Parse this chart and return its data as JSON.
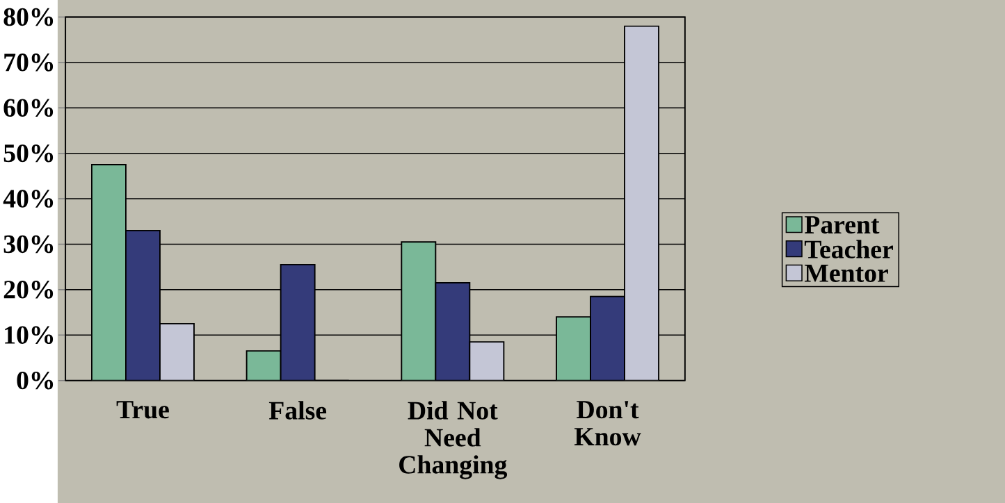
{
  "chart_data": {
    "type": "bar",
    "categories": [
      "True",
      "False",
      "Did Not Need Changing",
      "Don't Know"
    ],
    "series": [
      {
        "name": "Parent",
        "color": "#7ab898",
        "values": [
          47.5,
          6.5,
          30.5,
          14
        ]
      },
      {
        "name": "Teacher",
        "color": "#343b7a",
        "values": [
          33,
          25.5,
          21.5,
          18.5
        ]
      },
      {
        "name": "Mentor",
        "color": "#c4c6d6",
        "values": [
          12.5,
          0,
          8.5,
          78
        ]
      }
    ],
    "ylim": [
      0,
      80
    ],
    "yticks": [
      {
        "value": 0,
        "label": "0%"
      },
      {
        "value": 10,
        "label": "10%"
      },
      {
        "value": 20,
        "label": "20%"
      },
      {
        "value": 30,
        "label": "30%"
      },
      {
        "value": 40,
        "label": "40%"
      },
      {
        "value": 50,
        "label": "50%"
      },
      {
        "value": 60,
        "label": "60%"
      },
      {
        "value": 70,
        "label": "70%"
      },
      {
        "value": 80,
        "label": "80%"
      }
    ],
    "grid": "y",
    "legend": "right"
  }
}
